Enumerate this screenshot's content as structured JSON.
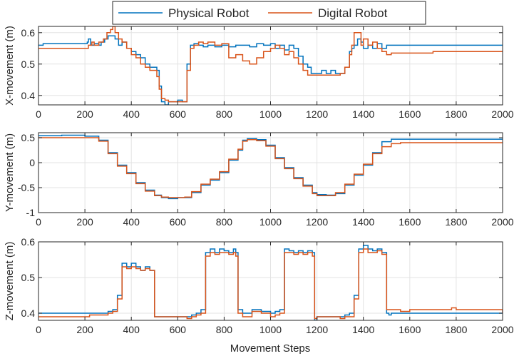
{
  "legend": {
    "entries": [
      {
        "name": "Physical Robot",
        "color": "#0072BD"
      },
      {
        "name": "Digital Robot",
        "color": "#D95319"
      }
    ]
  },
  "xlabel": "Movement Steps",
  "chart_data": [
    {
      "type": "line",
      "ylabel": "X-movement (m)",
      "xlim": [
        0,
        2000
      ],
      "ylim": [
        0.37,
        0.62
      ],
      "xticks": [
        0,
        200,
        400,
        600,
        800,
        1000,
        1200,
        1400,
        1600,
        1800,
        2000
      ],
      "xtick_labels": [
        "0",
        "200",
        "400",
        "600",
        "800",
        "1000",
        "1200",
        "1400",
        "1600",
        "1800",
        "2000"
      ],
      "yticks": [
        0.4,
        0.5,
        0.6
      ],
      "ytick_labels": [
        "0.4",
        "0.5",
        "0.6"
      ],
      "grid": true,
      "series": [
        {
          "name": "Physical Robot",
          "color": "#0072BD",
          "x": [
            0,
            20,
            200,
            210,
            215,
            225,
            240,
            260,
            270,
            285,
            300,
            315,
            330,
            345,
            360,
            380,
            400,
            420,
            440,
            460,
            480,
            500,
            510,
            520,
            530,
            545,
            560,
            580,
            600,
            620,
            630,
            640,
            655,
            670,
            690,
            710,
            730,
            760,
            790,
            820,
            850,
            880,
            910,
            940,
            970,
            1000,
            1020,
            1040,
            1060,
            1080,
            1100,
            1120,
            1140,
            1160,
            1175,
            1185,
            1200,
            1220,
            1240,
            1260,
            1280,
            1300,
            1320,
            1340,
            1350,
            1360,
            1375,
            1390,
            1400,
            1420,
            1440,
            1460,
            1480,
            1500,
            1520,
            1540,
            1560,
            1600,
            1640,
            1700,
            1750,
            1800,
            1900,
            2000
          ],
          "y": [
            0.56,
            0.565,
            0.565,
            0.57,
            0.58,
            0.56,
            0.565,
            0.56,
            0.57,
            0.58,
            0.59,
            0.59,
            0.58,
            0.56,
            0.57,
            0.55,
            0.54,
            0.53,
            0.52,
            0.5,
            0.49,
            0.49,
            0.48,
            0.43,
            0.38,
            0.37,
            0.38,
            0.38,
            0.385,
            0.38,
            0.38,
            0.5,
            0.56,
            0.565,
            0.56,
            0.555,
            0.56,
            0.555,
            0.56,
            0.555,
            0.56,
            0.56,
            0.555,
            0.565,
            0.56,
            0.565,
            0.55,
            0.56,
            0.545,
            0.56,
            0.55,
            0.525,
            0.5,
            0.49,
            0.47,
            0.47,
            0.47,
            0.48,
            0.47,
            0.48,
            0.47,
            0.47,
            0.49,
            0.54,
            0.55,
            0.56,
            0.58,
            0.57,
            0.55,
            0.56,
            0.55,
            0.565,
            0.55,
            0.56,
            0.56,
            0.56,
            0.56,
            0.56,
            0.56,
            0.56,
            0.56,
            0.56,
            0.56,
            0.56
          ]
        },
        {
          "name": "Digital Robot",
          "color": "#D95319",
          "x": [
            0,
            20,
            200,
            215,
            230,
            240,
            260,
            280,
            295,
            310,
            320,
            330,
            345,
            360,
            380,
            400,
            420,
            440,
            460,
            480,
            500,
            510,
            520,
            530,
            545,
            560,
            580,
            600,
            620,
            630,
            640,
            655,
            670,
            690,
            710,
            730,
            760,
            790,
            820,
            850,
            880,
            910,
            940,
            970,
            1000,
            1020,
            1040,
            1060,
            1080,
            1100,
            1120,
            1140,
            1160,
            1175,
            1185,
            1200,
            1220,
            1240,
            1260,
            1280,
            1300,
            1320,
            1340,
            1350,
            1360,
            1375,
            1390,
            1400,
            1420,
            1440,
            1460,
            1480,
            1500,
            1520,
            1540,
            1560,
            1600,
            1700,
            1800,
            1900,
            2000
          ],
          "y": [
            0.55,
            0.55,
            0.55,
            0.56,
            0.57,
            0.56,
            0.57,
            0.58,
            0.6,
            0.61,
            0.62,
            0.6,
            0.58,
            0.57,
            0.55,
            0.53,
            0.52,
            0.5,
            0.49,
            0.48,
            0.48,
            0.46,
            0.42,
            0.39,
            0.385,
            0.38,
            0.38,
            0.38,
            0.38,
            0.38,
            0.48,
            0.55,
            0.56,
            0.57,
            0.565,
            0.57,
            0.56,
            0.565,
            0.52,
            0.53,
            0.51,
            0.5,
            0.52,
            0.54,
            0.55,
            0.56,
            0.55,
            0.53,
            0.54,
            0.52,
            0.5,
            0.48,
            0.465,
            0.465,
            0.465,
            0.465,
            0.465,
            0.465,
            0.465,
            0.465,
            0.47,
            0.49,
            0.53,
            0.56,
            0.6,
            0.6,
            0.56,
            0.58,
            0.56,
            0.57,
            0.55,
            0.54,
            0.53,
            0.535,
            0.535,
            0.535,
            0.535,
            0.54,
            0.54,
            0.54,
            0.54
          ]
        }
      ]
    },
    {
      "type": "line",
      "ylabel": "Y-movement (m)",
      "xlim": [
        0,
        2000
      ],
      "ylim": [
        -1,
        0.6
      ],
      "xticks": [
        0,
        200,
        400,
        600,
        800,
        1000,
        1200,
        1400,
        1600,
        1800,
        2000
      ],
      "xtick_labels": [
        "0",
        "200",
        "400",
        "600",
        "800",
        "1000",
        "1200",
        "1400",
        "1600",
        "1800",
        "2000"
      ],
      "yticks": [
        -1,
        -0.5,
        0,
        0.5
      ],
      "ytick_labels": [
        "-1",
        "-0.5",
        "0",
        "0.5"
      ],
      "grid": true,
      "series": [
        {
          "name": "Physical Robot",
          "color": "#0072BD",
          "x": [
            0,
            100,
            200,
            260,
            300,
            340,
            380,
            420,
            460,
            500,
            530,
            560,
            600,
            630,
            660,
            700,
            740,
            780,
            820,
            860,
            880,
            900,
            940,
            980,
            1020,
            1060,
            1100,
            1140,
            1180,
            1200,
            1240,
            1280,
            1320,
            1360,
            1400,
            1440,
            1480,
            1520,
            1560,
            1600,
            1700,
            1800,
            2000
          ],
          "y": [
            0.54,
            0.55,
            0.53,
            0.45,
            0.2,
            -0.05,
            -0.2,
            -0.4,
            -0.55,
            -0.65,
            -0.7,
            -0.72,
            -0.7,
            -0.7,
            -0.6,
            -0.45,
            -0.35,
            -0.2,
            0.05,
            0.25,
            0.45,
            0.48,
            0.46,
            0.35,
            0.1,
            -0.1,
            -0.3,
            -0.45,
            -0.6,
            -0.64,
            -0.65,
            -0.62,
            -0.45,
            -0.25,
            -0.05,
            0.2,
            0.42,
            0.47,
            0.47,
            0.47,
            0.47,
            0.47,
            0.47
          ]
        },
        {
          "name": "Digital Robot",
          "color": "#D95319",
          "x": [
            0,
            100,
            200,
            260,
            300,
            340,
            380,
            420,
            460,
            500,
            530,
            560,
            600,
            630,
            660,
            700,
            740,
            780,
            820,
            860,
            880,
            900,
            940,
            980,
            1020,
            1060,
            1100,
            1140,
            1180,
            1200,
            1240,
            1280,
            1320,
            1360,
            1400,
            1440,
            1480,
            1520,
            1560,
            1600,
            1700,
            1800,
            2000
          ],
          "y": [
            0.5,
            0.5,
            0.5,
            0.43,
            0.18,
            -0.07,
            -0.22,
            -0.42,
            -0.57,
            -0.66,
            -0.69,
            -0.7,
            -0.7,
            -0.69,
            -0.58,
            -0.43,
            -0.33,
            -0.18,
            0.07,
            0.27,
            0.43,
            0.46,
            0.44,
            0.33,
            0.08,
            -0.12,
            -0.32,
            -0.47,
            -0.62,
            -0.66,
            -0.66,
            -0.6,
            -0.43,
            -0.23,
            -0.03,
            0.18,
            0.32,
            0.38,
            0.4,
            0.4,
            0.4,
            0.4,
            0.4
          ]
        }
      ]
    },
    {
      "type": "line",
      "ylabel": "Z-movement (m)",
      "xlim": [
        0,
        2000
      ],
      "ylim": [
        0.38,
        0.6
      ],
      "xticks": [
        0,
        200,
        400,
        600,
        800,
        1000,
        1200,
        1400,
        1600,
        1800,
        2000
      ],
      "xtick_labels": [
        "0",
        "200",
        "400",
        "600",
        "800",
        "1000",
        "1200",
        "1400",
        "1600",
        "1800",
        "2000"
      ],
      "yticks": [
        0.4,
        0.5,
        0.6
      ],
      "ytick_labels": [
        "0.4",
        "0.5",
        "0.6"
      ],
      "grid": true,
      "series": [
        {
          "name": "Physical Robot",
          "color": "#0072BD",
          "x": [
            0,
            200,
            220,
            280,
            300,
            320,
            340,
            360,
            380,
            400,
            420,
            440,
            460,
            480,
            500,
            600,
            640,
            660,
            680,
            700,
            720,
            740,
            760,
            780,
            800,
            820,
            840,
            850,
            860,
            880,
            920,
            960,
            1000,
            1020,
            1040,
            1060,
            1080,
            1100,
            1120,
            1140,
            1160,
            1180,
            1190,
            1200,
            1240,
            1300,
            1320,
            1340,
            1360,
            1380,
            1400,
            1420,
            1440,
            1460,
            1480,
            1500,
            1510,
            1520,
            1600,
            2000
          ],
          "y": [
            0.4,
            0.4,
            0.4,
            0.4,
            0.405,
            0.41,
            0.45,
            0.54,
            0.53,
            0.54,
            0.53,
            0.52,
            0.53,
            0.52,
            0.39,
            0.39,
            0.39,
            0.395,
            0.4,
            0.41,
            0.57,
            0.58,
            0.57,
            0.58,
            0.575,
            0.57,
            0.58,
            0.57,
            0.41,
            0.4,
            0.41,
            0.405,
            0.4,
            0.405,
            0.41,
            0.58,
            0.575,
            0.57,
            0.575,
            0.57,
            0.575,
            0.57,
            0.38,
            0.39,
            0.39,
            0.39,
            0.395,
            0.4,
            0.45,
            0.58,
            0.59,
            0.58,
            0.575,
            0.58,
            0.57,
            0.4,
            0.395,
            0.4,
            0.4,
            0.4
          ]
        },
        {
          "name": "Digital Robot",
          "color": "#D95319",
          "x": [
            0,
            200,
            220,
            280,
            300,
            320,
            340,
            360,
            380,
            400,
            420,
            440,
            460,
            480,
            500,
            600,
            640,
            660,
            680,
            700,
            720,
            740,
            760,
            780,
            800,
            820,
            840,
            850,
            860,
            880,
            920,
            960,
            1000,
            1020,
            1040,
            1060,
            1080,
            1100,
            1120,
            1140,
            1160,
            1180,
            1190,
            1200,
            1240,
            1300,
            1320,
            1340,
            1360,
            1380,
            1400,
            1420,
            1440,
            1460,
            1480,
            1500,
            1520,
            1560,
            1600,
            1760,
            1780,
            1800,
            1900,
            2000
          ],
          "y": [
            0.39,
            0.39,
            0.395,
            0.395,
            0.4,
            0.405,
            0.44,
            0.53,
            0.525,
            0.53,
            0.525,
            0.52,
            0.525,
            0.52,
            0.39,
            0.39,
            0.385,
            0.39,
            0.395,
            0.4,
            0.56,
            0.57,
            0.565,
            0.57,
            0.57,
            0.565,
            0.57,
            0.56,
            0.4,
            0.39,
            0.405,
            0.4,
            0.39,
            0.395,
            0.4,
            0.57,
            0.57,
            0.565,
            0.57,
            0.565,
            0.57,
            0.56,
            0.385,
            0.39,
            0.39,
            0.385,
            0.39,
            0.39,
            0.44,
            0.57,
            0.58,
            0.57,
            0.57,
            0.575,
            0.565,
            0.41,
            0.41,
            0.405,
            0.41,
            0.41,
            0.415,
            0.41,
            0.41,
            0.4
          ]
        }
      ]
    }
  ]
}
